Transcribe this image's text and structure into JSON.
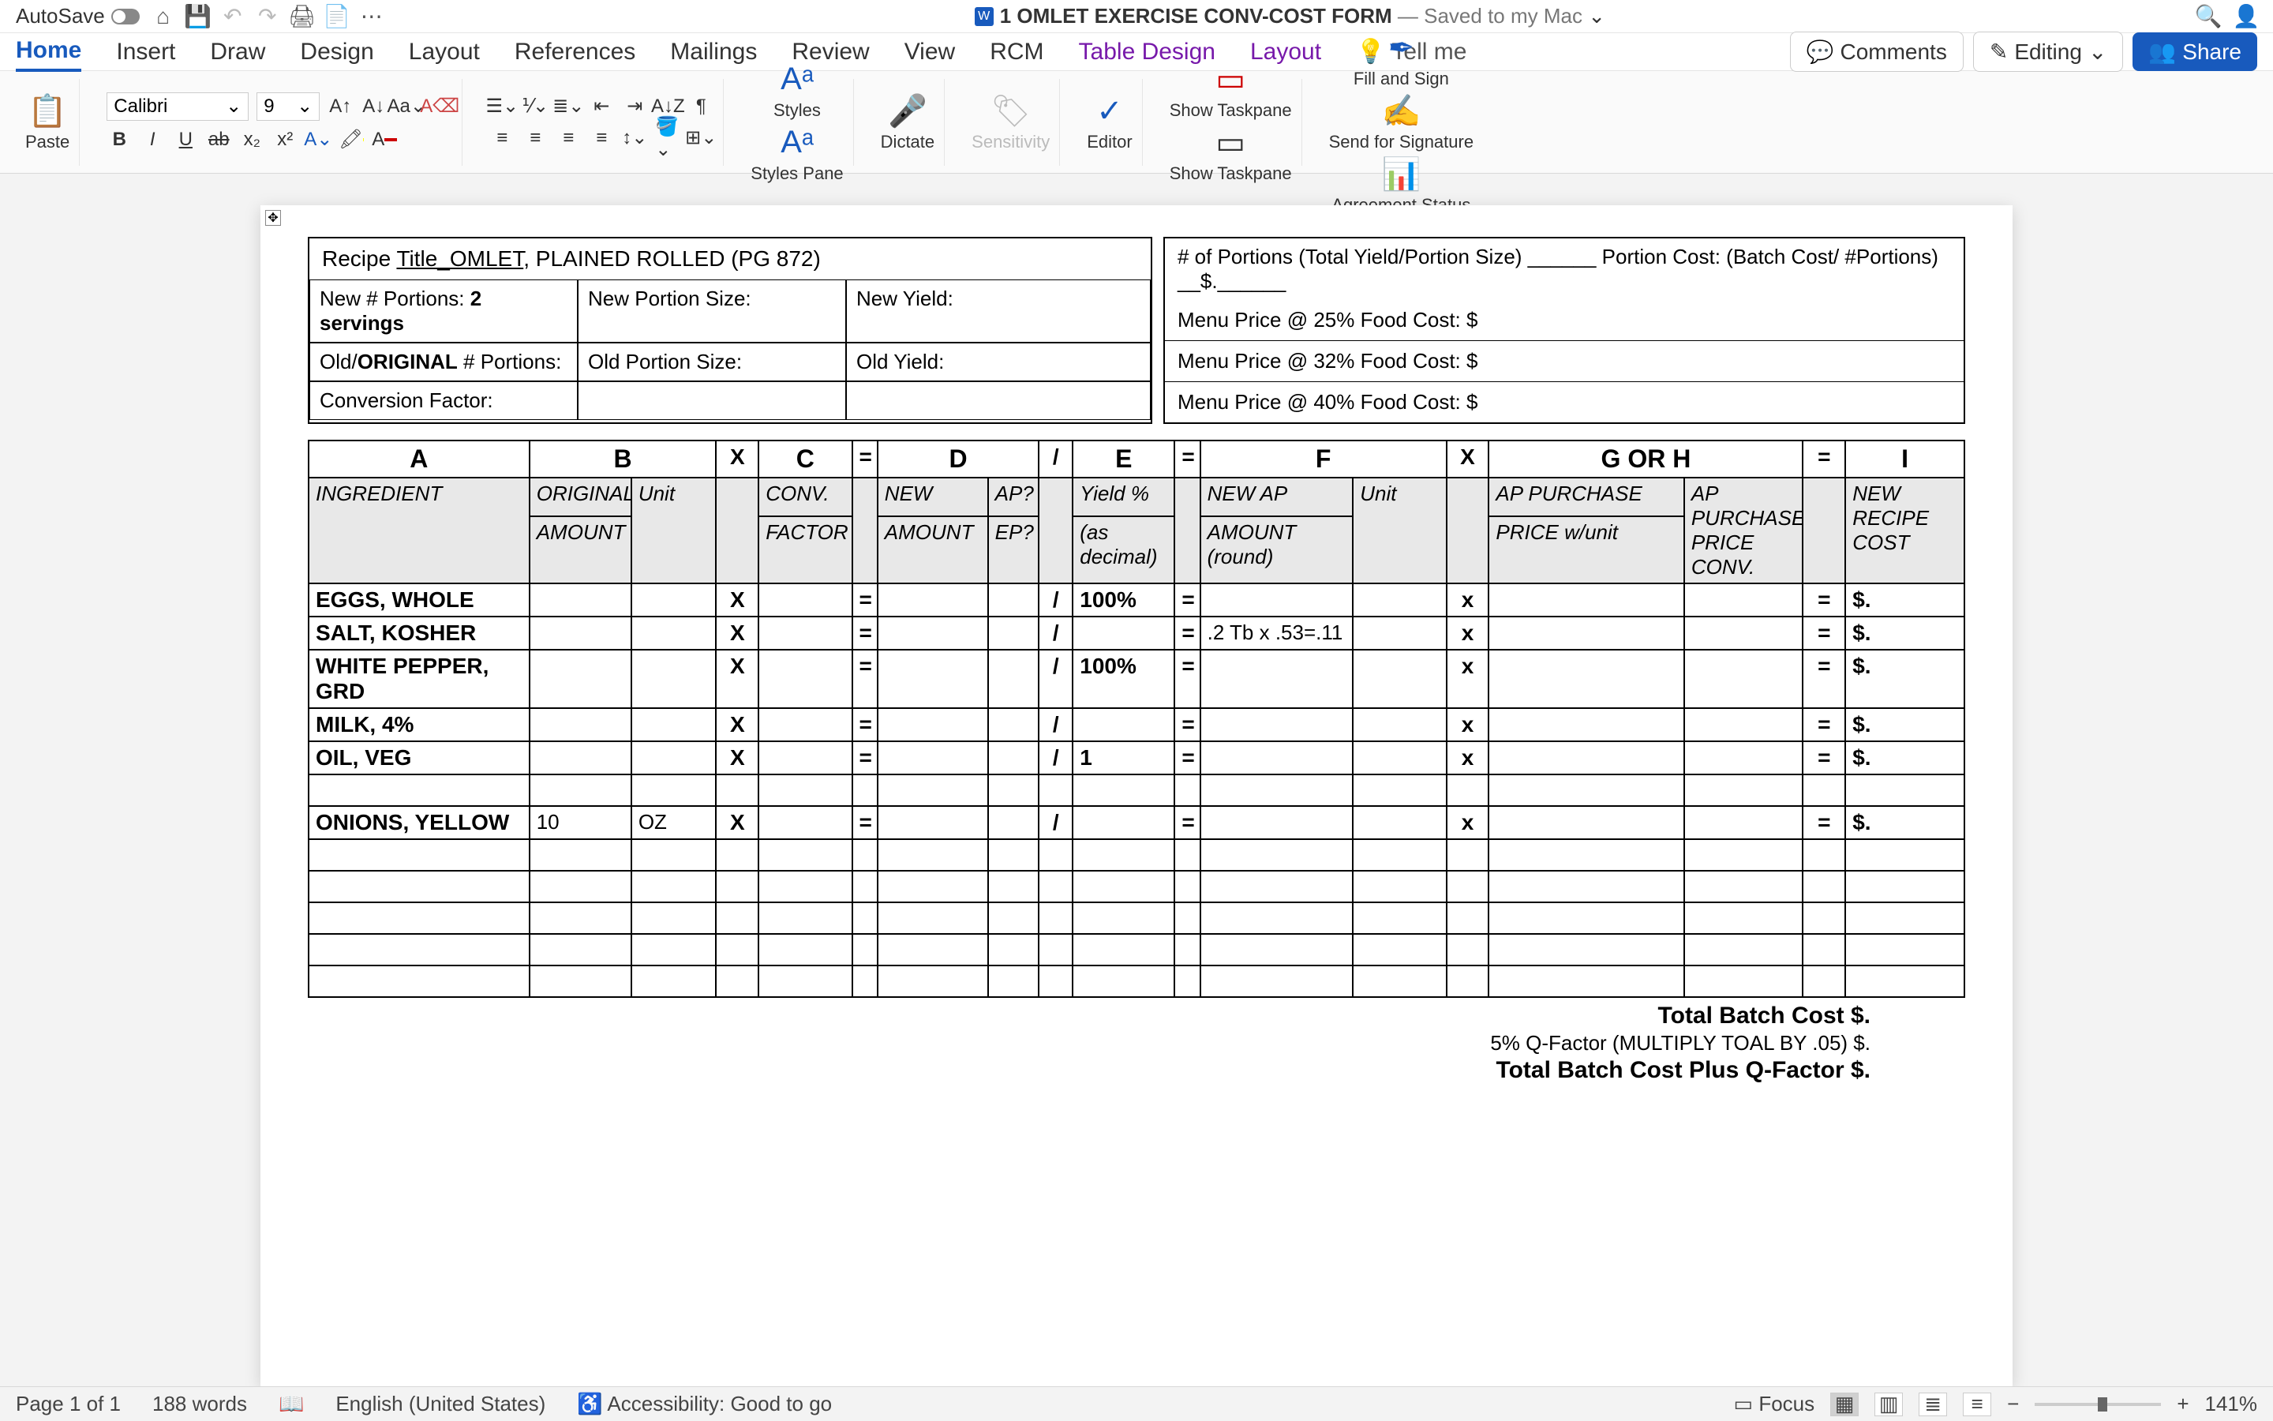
{
  "titlebar": {
    "autosave": "AutoSave",
    "doc_title": "1 OMLET EXERCISE CONV-COST FORM",
    "saved_status": "— Saved to my Mac",
    "chevron": "⌄"
  },
  "menutabs": [
    "Home",
    "Insert",
    "Draw",
    "Design",
    "Layout",
    "References",
    "Mailings",
    "Review",
    "View",
    "RCM",
    "Table Design",
    "Layout"
  ],
  "menutabs_active": 0,
  "tellme": "Tell me",
  "right_pills": {
    "comments": "Comments",
    "editing": "Editing",
    "share": "Share"
  },
  "ribbon": {
    "paste": "Paste",
    "font_name": "Calibri",
    "font_size": "9",
    "styles": "Styles",
    "styles_pane": "Styles Pane",
    "dictate": "Dictate",
    "sensitivity": "Sensitivity",
    "editor": "Editor",
    "show_taskpane1": "Show Taskpane",
    "show_taskpane2": "Show Taskpane",
    "fill_sign": "Fill and Sign",
    "send_sig": "Send for Signature",
    "agreement": "Agreement Status"
  },
  "doc": {
    "recipe_label": "Recipe ",
    "recipe_title_u": "Title_OMLET",
    "recipe_title_rest": ", PLAINED ROLLED (PG 872)",
    "new_portions_label": "New # Portions: ",
    "new_portions_val": "2 servings",
    "new_portion_size": "New Portion Size:",
    "new_yield": "New Yield:",
    "old_portions_pre": "Old/",
    "old_portions_bold": "ORIGINAL",
    "old_portions_post": " # Portions:",
    "old_portion_size": "Old Portion Size:",
    "old_yield": "Old Yield:",
    "conv_factor": "Conversion Factor:",
    "right_top": "# of Portions (Total Yield/Portion Size) ______     Portion Cost: (Batch Cost/ #Portions) __$.______",
    "menu25": "Menu Price @ 25% Food Cost: $",
    "menu32": "Menu Price @ 32% Food Cost: $",
    "menu40": "Menu Price @ 40% Food Cost: $"
  },
  "table": {
    "headers": [
      "A",
      "B",
      "",
      "X",
      "C",
      "=",
      "D",
      "",
      "/",
      "E",
      "=",
      "F",
      "",
      "X",
      "G OR H",
      "=",
      "I"
    ],
    "sub1": [
      "INGREDIENT",
      "ORIGINAL",
      "Unit",
      "",
      "CONV.",
      "",
      "NEW",
      "AP?",
      "",
      "Yield %",
      "",
      "NEW AP",
      "Unit",
      "",
      "AP PURCHASE",
      "",
      "AP",
      "",
      "NEW"
    ],
    "sub2": [
      "",
      "AMOUNT",
      "",
      "",
      "FACTOR",
      "",
      "AMOUNT",
      "EP?",
      "",
      "(as decimal)",
      "",
      "AMOUNT (round)",
      "",
      "",
      "PRICE w/unit",
      "",
      "PURCHASE PRICE CONV.",
      "",
      "RECIPE COST"
    ],
    "rows": [
      {
        "ing": "EGGS, WHOLE",
        "b": "",
        "u": "",
        "c": "",
        "d": "",
        "ap": "",
        "e": "100%",
        "f": "",
        "fu": "",
        "g": "",
        "h": "",
        "i": "$."
      },
      {
        "ing": "SALT, KOSHER",
        "b": "",
        "u": "",
        "c": "",
        "d": "",
        "ap": "",
        "e": "",
        "f": ".2 Tb x .53=.11",
        "fu": "",
        "g": "",
        "h": "",
        "i": "$."
      },
      {
        "ing": "WHITE PEPPER, GRD",
        "b": "",
        "u": "",
        "c": "",
        "d": "",
        "ap": "",
        "e": "100%",
        "f": "",
        "fu": "",
        "g": "",
        "h": "",
        "i": "$."
      },
      {
        "ing": "MILK, 4%",
        "b": "",
        "u": "",
        "c": "",
        "d": "",
        "ap": "",
        "e": "",
        "f": "",
        "fu": "",
        "g": "",
        "h": "",
        "i": "$."
      },
      {
        "ing": "OIL, VEG",
        "b": "",
        "u": "",
        "c": "",
        "d": "",
        "ap": "",
        "e": "1",
        "f": "",
        "fu": "",
        "g": "",
        "h": "",
        "i": "$."
      }
    ],
    "gap_row": true,
    "rows2": [
      {
        "ing": "ONIONS, YELLOW",
        "b": "10",
        "u": "OZ",
        "c": "",
        "d": "",
        "ap": "",
        "e": "",
        "f": "",
        "fu": "",
        "g": "",
        "h": "",
        "i": "$."
      }
    ],
    "blank_count": 5
  },
  "totals": {
    "l1": "Total Batch Cost      $.",
    "l2": "5% Q-Factor (MULTIPLY TOAL BY .05) $.",
    "l3": "Total Batch Cost Plus Q-Factor   $."
  },
  "status": {
    "page": "Page 1 of 1",
    "words": "188 words",
    "lang": "English (United States)",
    "access": "Accessibility: Good to go",
    "focus": "Focus",
    "zoom": "141%"
  },
  "colors": {
    "accent": "#185abd",
    "table_design": "#7719aa",
    "ribbon_bg": "#fafafa",
    "doc_bg": "#f3f3f3"
  }
}
